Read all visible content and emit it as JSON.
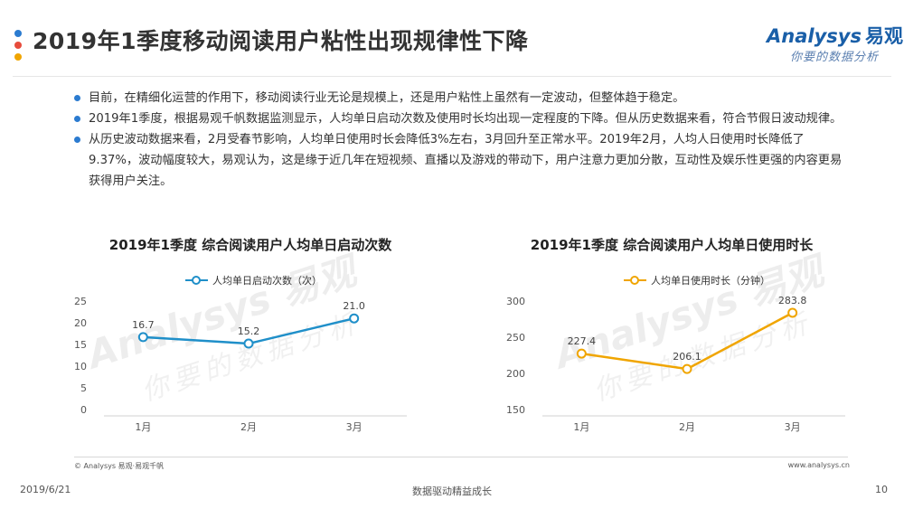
{
  "header": {
    "title": "2019年1季度移动阅读用户粘性出现规律性下降",
    "logo_brand": "Analysys",
    "logo_brand_cn": "易观",
    "logo_slogan": "你要的数据分析",
    "dot_colors": [
      "#2b7bd0",
      "#e74c3c",
      "#f0a500"
    ]
  },
  "bullets": [
    "目前，在精细化运营的作用下，移动阅读行业无论是规模上，还是用户粘性上虽然有一定波动，但整体趋于稳定。",
    "2019年1季度，根据易观千帆数据监测显示，人均单日启动次数及使用时长均出现一定程度的下降。但从历史数据来看，符合节假日波动规律。",
    "从历史波动数据来看，2月受春节影响，人均单日使用时长会降低3%左右，3月回升至正常水平。2019年2月，人均人日使用时长降低了9.37%，波动幅度较大，易观认为，这是缘于近几年在短视频、直播以及游戏的带动下，用户注意力更加分散，互动性及娱乐性更强的内容更易获得用户关注。"
  ],
  "watermark": {
    "brand": "Analysys 易观",
    "slogan": "你要的数据分析"
  },
  "chart_data": [
    {
      "type": "line",
      "title": "2019年1季度 综合阅读用户人均单日启动次数",
      "categories": [
        "1月",
        "2月",
        "3月"
      ],
      "series": [
        {
          "name": "人均单日启动次数（次）",
          "values": [
            16.7,
            15.2,
            21.0
          ],
          "labels": [
            "16.7",
            "15.2",
            "21.0"
          ],
          "color": "#1f8fc9"
        }
      ],
      "ylim": [
        0,
        25
      ],
      "yticks": [
        0,
        5,
        10,
        15,
        20,
        25
      ],
      "grid": false,
      "legend": "top"
    },
    {
      "type": "line",
      "title": "2019年1季度 综合阅读用户人均单日使用时长",
      "categories": [
        "1月",
        "2月",
        "3月"
      ],
      "series": [
        {
          "name": "人均单日使用时长（分钟）",
          "values": [
            227.4,
            206.1,
            283.8
          ],
          "labels": [
            "227.4",
            "206.1",
            "283.8"
          ],
          "color": "#f0a500"
        }
      ],
      "ylim": [
        150,
        300
      ],
      "yticks": [
        150,
        200,
        250,
        300
      ],
      "grid": false,
      "legend": "top"
    }
  ],
  "footer": {
    "copyright": "© Analysys 易观·易观千帆",
    "website": "www.analysys.cn",
    "date": "2019/6/21",
    "slogan": "数据驱动精益成长",
    "page": "10"
  }
}
